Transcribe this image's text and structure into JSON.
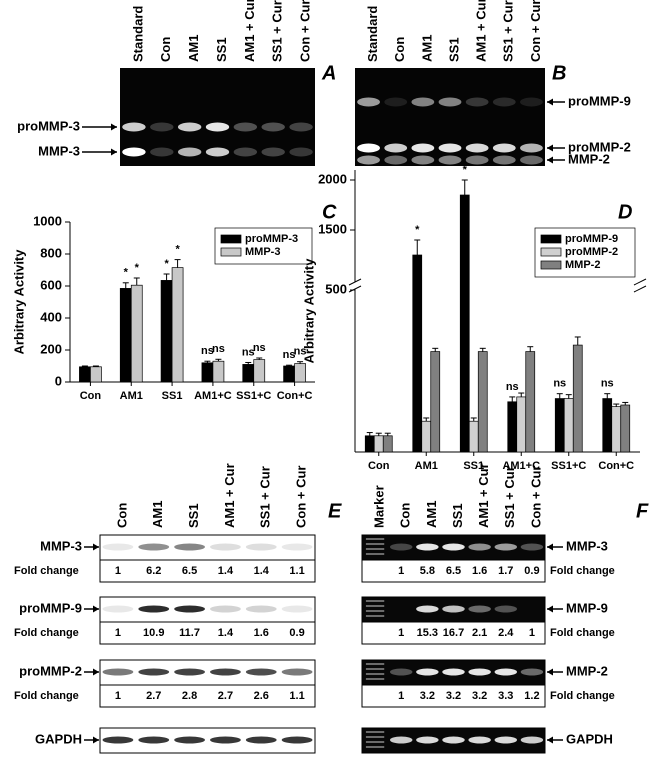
{
  "gels": [
    {
      "panel": "A",
      "lanes": [
        "Standard",
        "Con",
        "AM1",
        "SS1",
        "AM1 + Cur",
        "SS1 + Cur",
        "Con + Cur"
      ],
      "bands": [
        "proMMP-3",
        "MMP-3"
      ]
    },
    {
      "panel": "B",
      "lanes": [
        "Standard",
        "Con",
        "AM1",
        "SS1",
        "AM1 + Cur",
        "SS1 + Cur",
        "Con + Cur"
      ],
      "bands": [
        "proMMP-9",
        "proMMP-2",
        "MMP-2"
      ]
    }
  ],
  "chart_data": [
    {
      "type": "bar",
      "panel": "C",
      "ylabel": "Arbitrary Activity",
      "categories": [
        "Con",
        "AM1",
        "SS1",
        "AM1+C",
        "SS1+C",
        "Con+C"
      ],
      "series": [
        {
          "name": "proMMP-3",
          "color": "#000000",
          "values": [
            95,
            585,
            635,
            120,
            110,
            100
          ],
          "errors": [
            5,
            35,
            40,
            10,
            12,
            5
          ],
          "marks": [
            null,
            "*",
            "*",
            "ns",
            "ns",
            "ns"
          ]
        },
        {
          "name": "MMP-3",
          "color": "#c8c8c8",
          "values": [
            95,
            605,
            715,
            130,
            140,
            115
          ],
          "errors": [
            5,
            45,
            50,
            12,
            10,
            12
          ],
          "marks": [
            null,
            "*",
            "*",
            "ns",
            "ns",
            "ns"
          ]
        }
      ],
      "ylim": [
        0,
        1000
      ],
      "yticks": [
        0,
        200,
        400,
        600,
        800,
        1000
      ],
      "legend": "upper right"
    },
    {
      "type": "bar",
      "panel": "D",
      "ylabel": "Arbitrary Activity",
      "categories": [
        "Con",
        "AM1",
        "SS1",
        "AM1+C",
        "SS1+C",
        "Con+C"
      ],
      "series": [
        {
          "name": "proMMP-9",
          "color": "#000000",
          "values": [
            50,
            1250,
            1850,
            155,
            165,
            165
          ],
          "errors": [
            10,
            150,
            150,
            15,
            15,
            15
          ],
          "marks": [
            null,
            "*",
            "*",
            "ns",
            "ns",
            "ns"
          ]
        },
        {
          "name": "proMMP-2",
          "color": "#d0d0d0",
          "values": [
            50,
            95,
            95,
            170,
            165,
            140
          ],
          "errors": [
            8,
            10,
            10,
            12,
            12,
            8
          ]
        },
        {
          "name": "MMP-2",
          "color": "#808080",
          "values": [
            50,
            310,
            310,
            310,
            330,
            145
          ],
          "errors": [
            8,
            10,
            10,
            15,
            25,
            8
          ]
        }
      ],
      "ylim": [
        0,
        2100
      ],
      "ybreak": [
        500,
        1000
      ],
      "yticks": [
        500,
        1500,
        2000
      ],
      "legend": "upper right"
    }
  ],
  "blots": [
    {
      "panel": "E",
      "lanes": [
        "Con",
        "AM1",
        "SS1",
        "AM1 + Cur",
        "SS1 + Cur",
        "Con + Cur"
      ],
      "rows": [
        {
          "label": "MMP-3",
          "fold_label": "Fold change",
          "fold": [
            1,
            6.2,
            6.5,
            1.4,
            1.4,
            1.1
          ]
        },
        {
          "label": "proMMP-9",
          "fold_label": "Fold change",
          "fold": [
            1,
            10.9,
            11.7,
            1.4,
            1.6,
            0.9
          ]
        },
        {
          "label": "proMMP-2",
          "fold_label": "Fold change",
          "fold": [
            1,
            2.7,
            2.8,
            2.7,
            2.6,
            1.1
          ]
        },
        {
          "label": "GAPDH"
        }
      ]
    },
    {
      "panel": "F",
      "lanes": [
        "Marker",
        "Con",
        "AM1",
        "SS1",
        "AM1 + Cur",
        "SS1 + Cur",
        "Con + Cur"
      ],
      "rows": [
        {
          "label": "MMP-3",
          "fold_label": "Fold change",
          "fold": [
            1,
            5.8,
            6.5,
            1.6,
            1.7,
            0.9
          ]
        },
        {
          "label": "MMP-9",
          "fold_label": "Fold change",
          "fold": [
            1,
            15.3,
            16.7,
            2.1,
            2.4,
            1
          ]
        },
        {
          "label": "MMP-2",
          "fold_label": "Fold change",
          "fold": [
            1,
            3.2,
            3.2,
            3.2,
            3.3,
            1.2
          ]
        },
        {
          "label": "GAPDH"
        }
      ]
    }
  ]
}
